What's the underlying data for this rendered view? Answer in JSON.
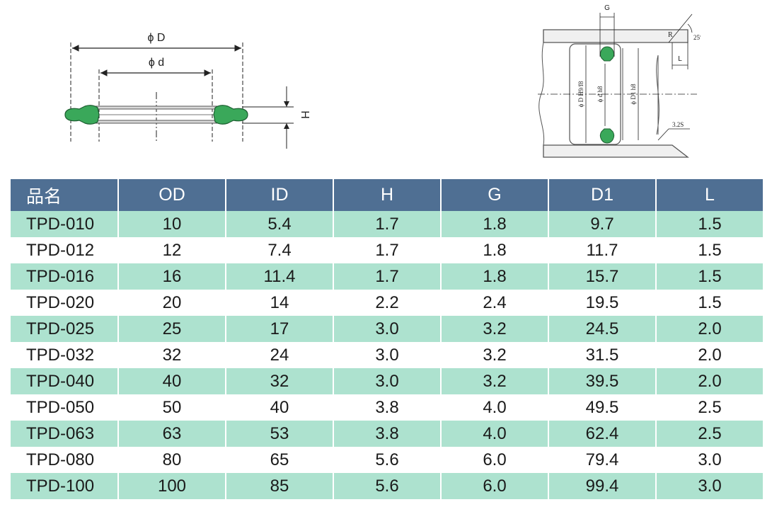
{
  "left_drawing": {
    "label_outer_diameter": "ϕ D",
    "label_inner_diameter": "ϕ d",
    "label_height": "H"
  },
  "right_drawing": {
    "label_groove": "G",
    "label_radius": "R",
    "label_angle": "25°",
    "label_length": "L",
    "label_bore": "ϕ D H9/f8",
    "label_shaft": "ϕ d h8",
    "label_d1": "ϕ D1 h8",
    "label_surface": "3.2S",
    "seal_color": "#3aa85a"
  },
  "table": {
    "header_color": "#4f6f93",
    "stripe_color": "#ade2cf",
    "columns": [
      "品名",
      "OD",
      "ID",
      "H",
      "G",
      "D1",
      "L"
    ],
    "rows": [
      [
        "TPD-010",
        "10",
        "5.4",
        "1.7",
        "1.8",
        "9.7",
        "1.5"
      ],
      [
        "TPD-012",
        "12",
        "7.4",
        "1.7",
        "1.8",
        "11.7",
        "1.5"
      ],
      [
        "TPD-016",
        "16",
        "11.4",
        "1.7",
        "1.8",
        "15.7",
        "1.5"
      ],
      [
        "TPD-020",
        "20",
        "14",
        "2.2",
        "2.4",
        "19.5",
        "1.5"
      ],
      [
        "TPD-025",
        "25",
        "17",
        "3.0",
        "3.2",
        "24.5",
        "2.0"
      ],
      [
        "TPD-032",
        "32",
        "24",
        "3.0",
        "3.2",
        "31.5",
        "2.0"
      ],
      [
        "TPD-040",
        "40",
        "32",
        "3.0",
        "3.2",
        "39.5",
        "2.0"
      ],
      [
        "TPD-050",
        "50",
        "40",
        "3.8",
        "4.0",
        "49.5",
        "2.5"
      ],
      [
        "TPD-063",
        "63",
        "53",
        "3.8",
        "4.0",
        "62.4",
        "2.5"
      ],
      [
        "TPD-080",
        "80",
        "65",
        "5.6",
        "6.0",
        "79.4",
        "3.0"
      ],
      [
        "TPD-100",
        "100",
        "85",
        "5.6",
        "6.0",
        "99.4",
        "3.0"
      ]
    ]
  }
}
